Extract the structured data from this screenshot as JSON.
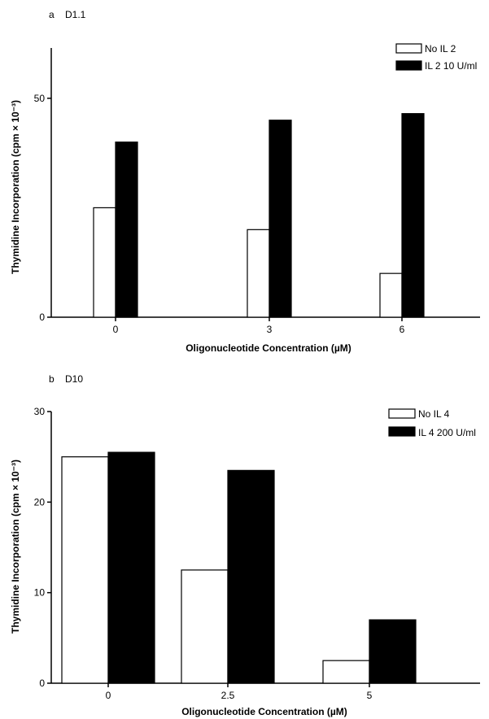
{
  "chart_data": [
    {
      "type": "bar",
      "panel": "a",
      "title": "D1.1",
      "xlabel": "Oligonucleotide Concentration (µM)",
      "ylabel": "Thymidine Incorporation (cpm × 10⁻³)",
      "categories": [
        "0",
        "3",
        "6"
      ],
      "series": [
        {
          "name": "No IL 2",
          "values": [
            25,
            20,
            10
          ],
          "color": "#ffffff"
        },
        {
          "name": "IL 2 10 U/ml",
          "values": [
            40,
            45,
            46.5
          ],
          "color": "#000000"
        }
      ],
      "ylim": [
        0,
        60
      ],
      "yticks": [
        0,
        50
      ],
      "grid": false,
      "legend": "top-right"
    },
    {
      "type": "bar",
      "panel": "b",
      "title": "D10",
      "xlabel": "Oligonucleotide Concentration (µM)",
      "ylabel": "Thymidine Incorporation (cpm × 10⁻³)",
      "categories": [
        "0",
        "2.5",
        "5"
      ],
      "series": [
        {
          "name": "No IL 4",
          "values": [
            25,
            12.5,
            2.5
          ],
          "color": "#ffffff"
        },
        {
          "name": "IL 4 200 U/ml",
          "values": [
            25.5,
            23.5,
            7
          ],
          "color": "#000000"
        }
      ],
      "ylim": [
        0,
        30
      ],
      "yticks": [
        0,
        10,
        20,
        30
      ],
      "grid": false,
      "legend": "top-right"
    }
  ]
}
